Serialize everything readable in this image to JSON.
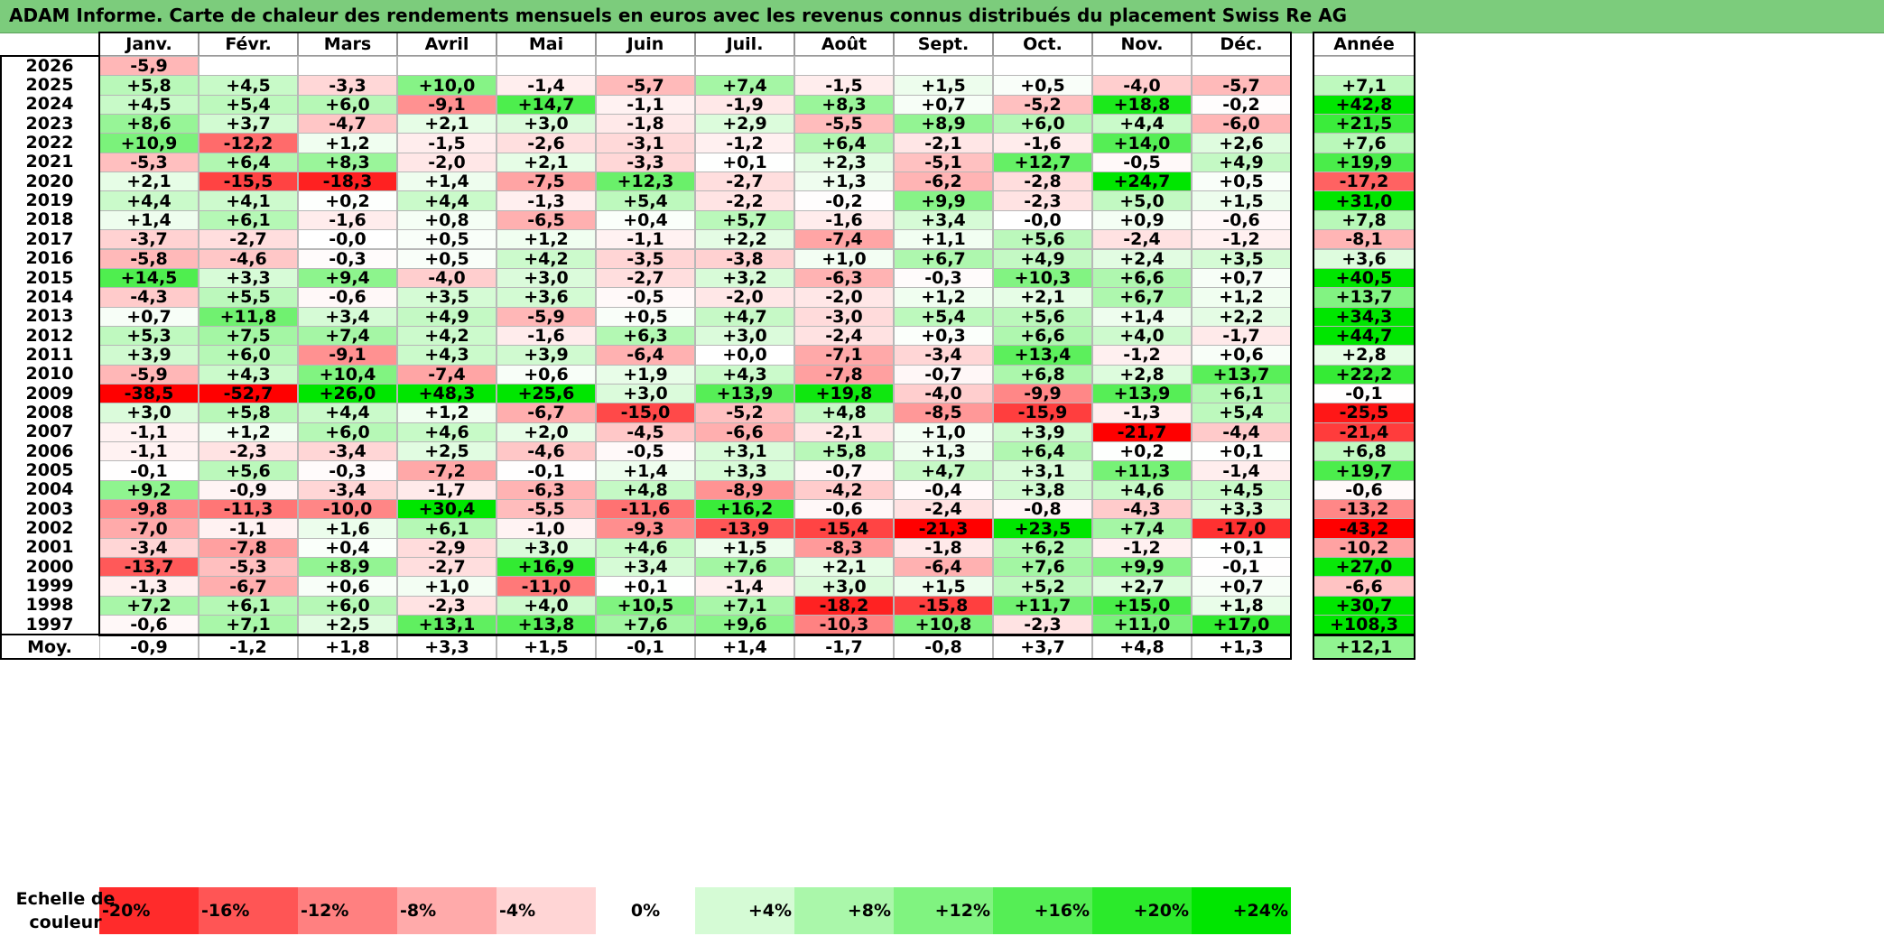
{
  "title": "ADAM Informe. Carte de chaleur des rendements mensuels en euros avec les revenus connus distribués du placement Swiss Re AG",
  "chart_data": {
    "type": "heatmap",
    "months": [
      "Janv.",
      "Févr.",
      "Mars",
      "Avril",
      "Mai",
      "Juin",
      "Juil.",
      "Août",
      "Sept.",
      "Oct.",
      "Nov.",
      "Déc."
    ],
    "year_header": "Année",
    "rows": [
      {
        "year": "2026",
        "months": [
          "-5,9",
          "",
          "",
          "",
          "",
          "",
          "",
          "",
          "",
          "",
          "",
          ""
        ],
        "annual": ""
      },
      {
        "year": "2025",
        "months": [
          "+5,8",
          "+4,5",
          "-3,3",
          "+10,0",
          "-1,4",
          "-5,7",
          "+7,4",
          "-1,5",
          "+1,5",
          "+0,5",
          "-4,0",
          "-5,7"
        ],
        "annual": "+7,1"
      },
      {
        "year": "2024",
        "months": [
          "+4,5",
          "+5,4",
          "+6,0",
          "-9,1",
          "+14,7",
          "-1,1",
          "-1,9",
          "+8,3",
          "+0,7",
          "-5,2",
          "+18,8",
          "-0,2"
        ],
        "annual": "+42,8"
      },
      {
        "year": "2023",
        "months": [
          "+8,6",
          "+3,7",
          "-4,7",
          "+2,1",
          "+3,0",
          "-1,8",
          "+2,9",
          "-5,5",
          "+8,9",
          "+6,0",
          "+4,4",
          "-6,0"
        ],
        "annual": "+21,5"
      },
      {
        "year": "2022",
        "months": [
          "+10,9",
          "-12,2",
          "+1,2",
          "-1,5",
          "-2,6",
          "-3,1",
          "-1,2",
          "+6,4",
          "-2,1",
          "-1,6",
          "+14,0",
          "+2,6"
        ],
        "annual": "+7,6"
      },
      {
        "year": "2021",
        "months": [
          "-5,3",
          "+6,4",
          "+8,3",
          "-2,0",
          "+2,1",
          "-3,3",
          "+0,1",
          "+2,3",
          "-5,1",
          "+12,7",
          "-0,5",
          "+4,9"
        ],
        "annual": "+19,9"
      },
      {
        "year": "2020",
        "months": [
          "+2,1",
          "-15,5",
          "-18,3",
          "+1,4",
          "-7,5",
          "+12,3",
          "-2,7",
          "+1,3",
          "-6,2",
          "-2,8",
          "+24,7",
          "+0,5"
        ],
        "annual": "-17,2"
      },
      {
        "year": "2019",
        "months": [
          "+4,4",
          "+4,1",
          "+0,2",
          "+4,4",
          "-1,3",
          "+5,4",
          "-2,2",
          "-0,2",
          "+9,9",
          "-2,3",
          "+5,0",
          "+1,5"
        ],
        "annual": "+31,0"
      },
      {
        "year": "2018",
        "months": [
          "+1,4",
          "+6,1",
          "-1,6",
          "+0,8",
          "-6,5",
          "+0,4",
          "+5,7",
          "-1,6",
          "+3,4",
          "-0,0",
          "+0,9",
          "-0,6"
        ],
        "annual": "+7,8"
      },
      {
        "year": "2017",
        "months": [
          "-3,7",
          "-2,7",
          "-0,0",
          "+0,5",
          "+1,2",
          "-1,1",
          "+2,2",
          "-7,4",
          "+1,1",
          "+5,6",
          "-2,4",
          "-1,2"
        ],
        "annual": "-8,1"
      },
      {
        "year": "2016",
        "months": [
          "-5,8",
          "-4,6",
          "-0,3",
          "+0,5",
          "+4,2",
          "-3,5",
          "-3,8",
          "+1,0",
          "+6,7",
          "+4,9",
          "+2,4",
          "+3,5"
        ],
        "annual": "+3,6"
      },
      {
        "year": "2015",
        "months": [
          "+14,5",
          "+3,3",
          "+9,4",
          "-4,0",
          "+3,0",
          "-2,7",
          "+3,2",
          "-6,3",
          "-0,3",
          "+10,3",
          "+6,6",
          "+0,7"
        ],
        "annual": "+40,5"
      },
      {
        "year": "2014",
        "months": [
          "-4,3",
          "+5,5",
          "-0,6",
          "+3,5",
          "+3,6",
          "-0,5",
          "-2,0",
          "-2,0",
          "+1,2",
          "+2,1",
          "+6,7",
          "+1,2"
        ],
        "annual": "+13,7"
      },
      {
        "year": "2013",
        "months": [
          "+0,7",
          "+11,8",
          "+3,4",
          "+4,9",
          "-5,9",
          "+0,5",
          "+4,7",
          "-3,0",
          "+5,4",
          "+5,6",
          "+1,4",
          "+2,2"
        ],
        "annual": "+34,3"
      },
      {
        "year": "2012",
        "months": [
          "+5,3",
          "+7,5",
          "+7,4",
          "+4,2",
          "-1,6",
          "+6,3",
          "+3,0",
          "-2,4",
          "+0,3",
          "+6,6",
          "+4,0",
          "-1,7"
        ],
        "annual": "+44,7"
      },
      {
        "year": "2011",
        "months": [
          "+3,9",
          "+6,0",
          "-9,1",
          "+4,3",
          "+3,9",
          "-6,4",
          "+0,0",
          "-7,1",
          "-3,4",
          "+13,4",
          "-1,2",
          "+0,6"
        ],
        "annual": "+2,8"
      },
      {
        "year": "2010",
        "months": [
          "-5,9",
          "+4,3",
          "+10,4",
          "-7,4",
          "+0,6",
          "+1,9",
          "+4,3",
          "-7,8",
          "-0,7",
          "+6,8",
          "+2,8",
          "+13,7"
        ],
        "annual": "+22,2"
      },
      {
        "year": "2009",
        "months": [
          "-38,5",
          "-52,7",
          "+26,0",
          "+48,3",
          "+25,6",
          "+3,0",
          "+13,9",
          "+19,8",
          "-4,0",
          "-9,9",
          "+13,9",
          "+6,1"
        ],
        "annual": "-0,1"
      },
      {
        "year": "2008",
        "months": [
          "+3,0",
          "+5,8",
          "+4,4",
          "+1,2",
          "-6,7",
          "-15,0",
          "-5,2",
          "+4,8",
          "-8,5",
          "-15,9",
          "-1,3",
          "+5,4"
        ],
        "annual": "-25,5"
      },
      {
        "year": "2007",
        "months": [
          "-1,1",
          "+1,2",
          "+6,0",
          "+4,6",
          "+2,0",
          "-4,5",
          "-6,6",
          "-2,1",
          "+1,0",
          "+3,9",
          "-21,7",
          "-4,4"
        ],
        "annual": "-21,4"
      },
      {
        "year": "2006",
        "months": [
          "-1,1",
          "-2,3",
          "-3,4",
          "+2,5",
          "-4,6",
          "-0,5",
          "+3,1",
          "+5,8",
          "+1,3",
          "+6,4",
          "+0,2",
          "+0,1"
        ],
        "annual": "+6,8"
      },
      {
        "year": "2005",
        "months": [
          "-0,1",
          "+5,6",
          "-0,3",
          "-7,2",
          "-0,1",
          "+1,4",
          "+3,3",
          "-0,7",
          "+4,7",
          "+3,1",
          "+11,3",
          "-1,4"
        ],
        "annual": "+19,7"
      },
      {
        "year": "2004",
        "months": [
          "+9,2",
          "-0,9",
          "-3,4",
          "-1,7",
          "-6,3",
          "+4,8",
          "-8,9",
          "-4,2",
          "-0,4",
          "+3,8",
          "+4,6",
          "+4,5"
        ],
        "annual": "-0,6"
      },
      {
        "year": "2003",
        "months": [
          "-9,8",
          "-11,3",
          "-10,0",
          "+30,4",
          "-5,5",
          "-11,6",
          "+16,2",
          "-0,6",
          "-2,4",
          "-0,8",
          "-4,3",
          "+3,3"
        ],
        "annual": "-13,2"
      },
      {
        "year": "2002",
        "months": [
          "-7,0",
          "-1,1",
          "+1,6",
          "+6,1",
          "-1,0",
          "-9,3",
          "-13,9",
          "-15,4",
          "-21,3",
          "+23,5",
          "+7,4",
          "-17,0"
        ],
        "annual": "-43,2"
      },
      {
        "year": "2001",
        "months": [
          "-3,4",
          "-7,8",
          "+0,4",
          "-2,9",
          "+3,0",
          "+4,6",
          "+1,5",
          "-8,3",
          "-1,8",
          "+6,2",
          "-1,2",
          "+0,1"
        ],
        "annual": "-10,2"
      },
      {
        "year": "2000",
        "months": [
          "-13,7",
          "-5,3",
          "+8,9",
          "-2,7",
          "+16,9",
          "+3,4",
          "+7,6",
          "+2,1",
          "-6,4",
          "+7,6",
          "+9,9",
          "-0,1"
        ],
        "annual": "+27,0"
      },
      {
        "year": "1999",
        "months": [
          "-1,3",
          "-6,7",
          "+0,6",
          "+1,0",
          "-11,0",
          "+0,1",
          "-1,4",
          "+3,0",
          "+1,5",
          "+5,2",
          "+2,7",
          "+0,7"
        ],
        "annual": "-6,6"
      },
      {
        "year": "1998",
        "months": [
          "+7,2",
          "+6,1",
          "+6,0",
          "-2,3",
          "+4,0",
          "+10,5",
          "+7,1",
          "-18,2",
          "-15,8",
          "+11,7",
          "+15,0",
          "+1,8"
        ],
        "annual": "+30,7"
      },
      {
        "year": "1997",
        "months": [
          "-0,6",
          "+7,1",
          "+2,5",
          "+13,1",
          "+13,8",
          "+7,6",
          "+9,6",
          "-10,3",
          "+10,8",
          "-2,3",
          "+11,0",
          "+17,0"
        ],
        "annual": "+108,3"
      }
    ],
    "average": {
      "label": "Moy.",
      "months": [
        "-0,9",
        "-1,2",
        "+1,8",
        "+3,3",
        "+1,5",
        "-0,1",
        "+1,4",
        "-1,7",
        "-0,8",
        "+3,7",
        "+4,8",
        "+1,3"
      ],
      "annual": "+12,1"
    },
    "scale": {
      "label_line1": "Echelle de",
      "label_line2": "couleur",
      "steps": [
        "-20%",
        "-16%",
        "-12%",
        "-8%",
        "-4%",
        "0%",
        "+4%",
        "+8%",
        "+12%",
        "+16%",
        "+20%",
        "+24%"
      ]
    }
  }
}
